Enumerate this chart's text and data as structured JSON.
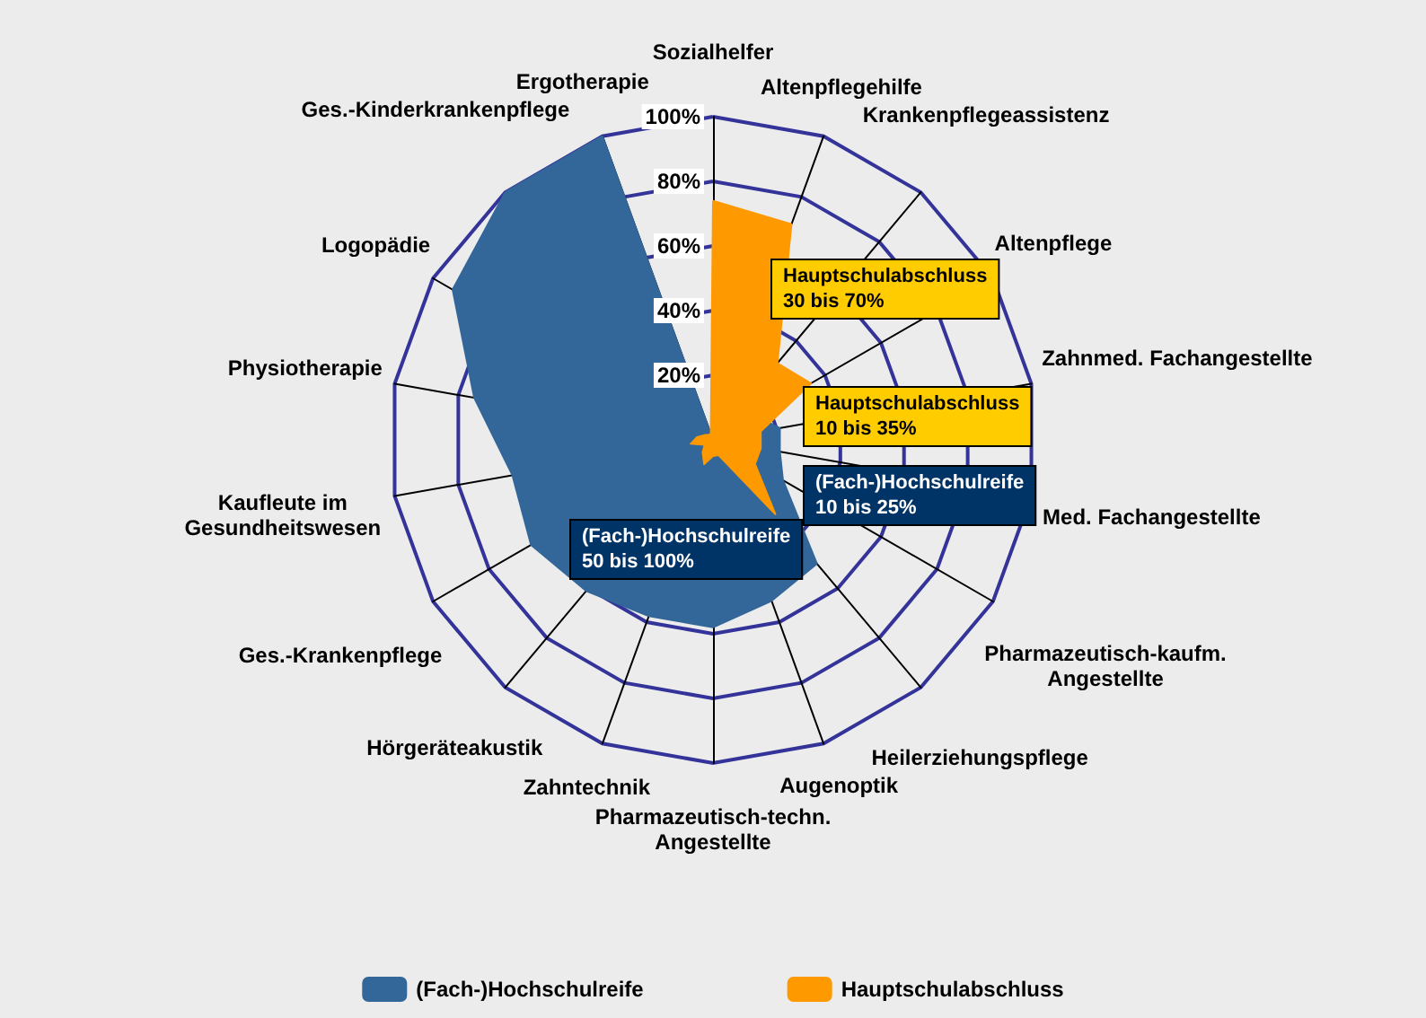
{
  "chart_data": {
    "type": "radar",
    "categories": [
      "Sozialhelfer",
      "Altenpflegehilfe",
      "Krankenpflegeassistenz",
      "Altenpflege",
      "Zahnmed. Fachangestellte",
      "Med. Fachangestellte",
      "Pharmazeutisch-kaufm.\nAngestellte",
      "Heilerziehungspflege",
      "Augenoptik",
      "Pharmazeutisch-techn.\nAngestellte",
      "Zahntechnik",
      "Hörgeräteakustik",
      "Ges.-Krankenpflege",
      "Kaufleute im\nGesundheitswesen",
      "Physiotherapie",
      "Logopädie",
      "Ges.-Kinderkrankenpflege",
      "Ergotherapie"
    ],
    "series": [
      {
        "name": "(Fach-)Hochschulreife",
        "color": "#336699",
        "values": [
          0,
          5,
          10,
          15,
          21,
          21,
          25,
          50,
          53,
          58,
          58,
          61,
          65,
          63,
          75,
          93,
          100,
          100
        ]
      },
      {
        "name": "Hauptschulabschluss",
        "color": "#ff9900",
        "values": [
          74,
          71,
          31,
          35,
          15,
          15,
          15,
          30,
          5,
          5,
          8,
          5,
          3,
          7,
          5,
          3,
          2,
          2
        ]
      }
    ],
    "ylim": [
      0,
      100
    ],
    "yticks": [
      {
        "value": 20,
        "label": "20%"
      },
      {
        "value": 40,
        "label": "40%"
      },
      {
        "value": 60,
        "label": "60%"
      },
      {
        "value": 80,
        "label": "80%"
      },
      {
        "value": 100,
        "label": "100%"
      }
    ],
    "legend": "bottom",
    "annotations": [
      "Hauptschulabschluss\n30 bis 70%",
      "Hauptschulabschluss\n10 bis 35%",
      "(Fach-)Hochschulreife\n10 bis 25%",
      "(Fach-)Hochschulreife\n50 bis 100%"
    ]
  }
}
